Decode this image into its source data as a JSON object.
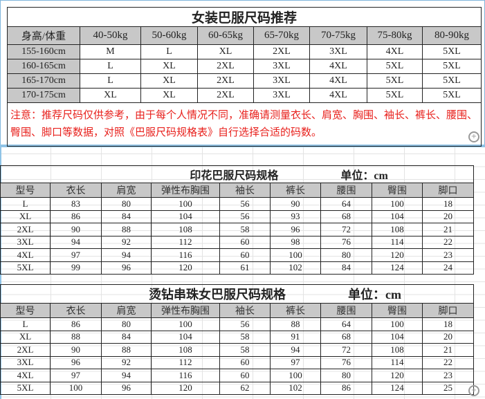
{
  "recommend": {
    "title": "女装巴服尺码推荐",
    "headers": [
      "身高/体重",
      "40-50kg",
      "50-60kg",
      "60-65kg",
      "65-70kg",
      "70-75kg",
      "75-80kg",
      "80-90kg"
    ],
    "rows": [
      [
        "155-160cm",
        "M",
        "L",
        "XL",
        "2XL",
        "3XL",
        "4XL",
        "5XL"
      ],
      [
        "160-165cm",
        "L",
        "XL",
        "2XL",
        "3XL",
        "4XL",
        "5XL",
        "5XL"
      ],
      [
        "165-170cm",
        "L",
        "XL",
        "2XL",
        "3XL",
        "4XL",
        "5XL",
        "5XL"
      ],
      [
        "170-175cm",
        "XL",
        "XL",
        "2XL",
        "3XL",
        "4XL",
        "5XL",
        "5XL"
      ]
    ],
    "note": "注意：推荐尺码仅供参考，由于每个人情况不同，准确请测量衣长、肩宽、胸围、袖长、裤长、腰围、臀围、脚口等数据，对照《巴服尺码规格表》自行选择合适的码数。"
  },
  "print_spec": {
    "title": "印花巴服尺码规格",
    "unit": "单位：cm",
    "headers": [
      "型号",
      "衣长",
      "肩宽",
      "弹性布胸围",
      "袖长",
      "裤长",
      "腰围",
      "臀围",
      "脚口"
    ],
    "rows": [
      [
        "L",
        "83",
        "80",
        "100",
        "56",
        "90",
        "64",
        "100",
        "18"
      ],
      [
        "XL",
        "86",
        "84",
        "104",
        "56",
        "93",
        "68",
        "104",
        "20"
      ],
      [
        "2XL",
        "90",
        "88",
        "108",
        "58",
        "96",
        "72",
        "108",
        "21"
      ],
      [
        "3XL",
        "94",
        "92",
        "112",
        "60",
        "98",
        "76",
        "114",
        "22"
      ],
      [
        "4XL",
        "97",
        "94",
        "116",
        "60",
        "100",
        "80",
        "120",
        "23"
      ],
      [
        "5XL",
        "99",
        "96",
        "120",
        "61",
        "102",
        "84",
        "124",
        "24"
      ]
    ]
  },
  "bead_spec": {
    "title": "烫钻串珠女巴服尺码规格",
    "unit": "单位：cm",
    "headers": [
      "型号",
      "衣长",
      "肩宽",
      "弹性布胸围",
      "袖长",
      "裤长",
      "腰围",
      "臀围",
      "脚口"
    ],
    "rows": [
      [
        "L",
        "86",
        "80",
        "100",
        "56",
        "88",
        "64",
        "100",
        "18"
      ],
      [
        "XL",
        "88",
        "84",
        "104",
        "58",
        "91",
        "68",
        "104",
        "20"
      ],
      [
        "2XL",
        "90",
        "88",
        "108",
        "58",
        "94",
        "72",
        "108",
        "21"
      ],
      [
        "3XL",
        "96",
        "92",
        "112",
        "60",
        "97",
        "76",
        "114",
        "22"
      ],
      [
        "4XL",
        "97",
        "94",
        "116",
        "60",
        "100",
        "80",
        "120",
        "23"
      ],
      [
        "5XL",
        "100",
        "96",
        "120",
        "62",
        "102",
        "86",
        "124",
        "25"
      ]
    ]
  },
  "icons": {
    "zoom": "zoom-in-icon"
  },
  "colors": {
    "note": "#e8211d",
    "header_bg": "#c8c8c8",
    "frame": "#8fc3e6"
  }
}
